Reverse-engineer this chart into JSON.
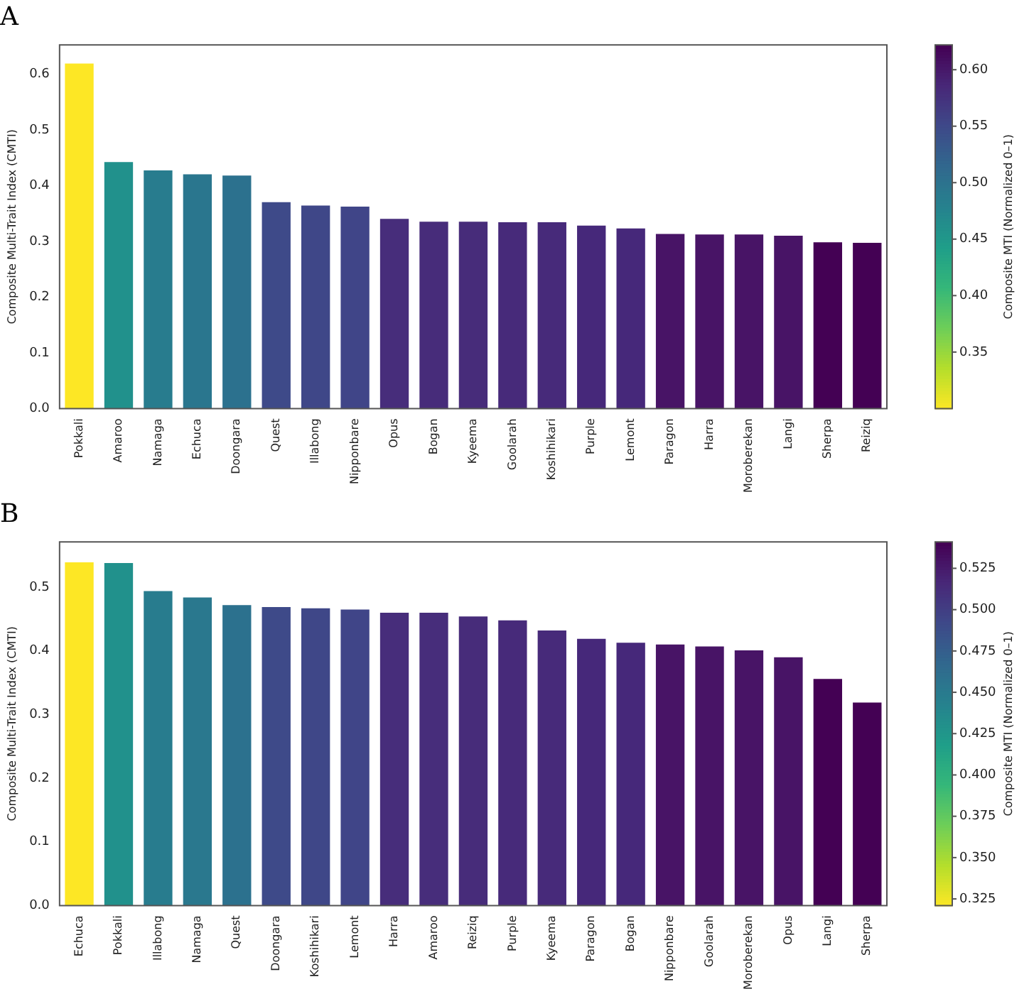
{
  "chart_data": [
    {
      "type": "bar",
      "title": "A",
      "ylabel": "Composite Multi-Trait Index (CMTI)",
      "clabel": "Composite MTI (Normalized 0–1)",
      "categories": [
        "Pokkali",
        "Amaroo",
        "Namaga",
        "Echuca",
        "Doongara",
        "Quest",
        "Illabong",
        "Nipponbare",
        "Opus",
        "Bogan",
        "Kyeema",
        "Goolarah",
        "Koshihikari",
        "Purple",
        "Lemont",
        "Paragon",
        "Harra",
        "Moroberekan",
        "Langi",
        "Sherpa",
        "Reiziq"
      ],
      "values": [
        0.622,
        0.445,
        0.43,
        0.423,
        0.421,
        0.373,
        0.367,
        0.365,
        0.343,
        0.338,
        0.338,
        0.337,
        0.337,
        0.331,
        0.326,
        0.316,
        0.315,
        0.315,
        0.313,
        0.301,
        0.3
      ],
      "colors": [
        "#fde725",
        "#21918c",
        "#287c8e",
        "#2a768e",
        "#2c718e",
        "#3e4a89",
        "#3f4788",
        "#404588",
        "#472d7b",
        "#472c7a",
        "#472c7a",
        "#472a7a",
        "#472a7a",
        "#46287a",
        "#46287a",
        "#481466",
        "#481466",
        "#481466",
        "#481466",
        "#440154",
        "#440154"
      ],
      "ylim": [
        0,
        0.653
      ],
      "yticks": [
        {
          "value": 0,
          "label": "0.0"
        },
        0.1,
        0.2,
        0.3,
        0.4,
        0.5,
        0.6
      ],
      "clim": [
        0.3,
        0.622
      ],
      "cticks": [
        0.35,
        {
          "value": 0.4,
          "label": "0.40"
        },
        0.45,
        {
          "value": 0.5,
          "label": "0.50"
        },
        0.55,
        {
          "value": 0.6,
          "label": "0.60"
        }
      ]
    },
    {
      "type": "bar",
      "title": "B",
      "ylabel": "Composite Multi-Trait Index (CMTI)",
      "clabel": "Composite MTI (Normalized 0–1)",
      "categories": [
        "Echuca",
        "Pokkali",
        "Illabong",
        "Namaga",
        "Quest",
        "Doongara",
        "Koshihikari",
        "Lemont",
        "Harra",
        "Amaroo",
        "Reiziq",
        "Purple",
        "Kyeema",
        "Paragon",
        "Bogan",
        "Nipponbare",
        "Goolarah",
        "Moroberekan",
        "Opus",
        "Langi",
        "Sherpa"
      ],
      "values": [
        0.541,
        0.54,
        0.496,
        0.486,
        0.474,
        0.471,
        0.469,
        0.467,
        0.462,
        0.462,
        0.456,
        0.45,
        0.434,
        0.421,
        0.415,
        0.412,
        0.409,
        0.403,
        0.392,
        0.358,
        0.321
      ],
      "colors": [
        "#fde725",
        "#21918c",
        "#287c8e",
        "#2a788e",
        "#2c718e",
        "#3e4a89",
        "#3f4788",
        "#404588",
        "#472d7b",
        "#472d7b",
        "#472c7a",
        "#472a7a",
        "#472a7a",
        "#46287a",
        "#46287a",
        "#481466",
        "#481466",
        "#481466",
        "#481466",
        "#440154",
        "#440154"
      ],
      "ylim": [
        0,
        0.571
      ],
      "yticks": [
        {
          "value": 0,
          "label": "0.0"
        },
        0.1,
        0.2,
        0.3,
        0.4,
        0.5
      ],
      "clim": [
        0.321,
        0.541
      ],
      "cticks": [
        0.325,
        {
          "value": 0.35,
          "label": "0.350"
        },
        0.375,
        {
          "value": 0.4,
          "label": "0.400"
        },
        0.425,
        {
          "value": 0.45,
          "label": "0.450"
        },
        0.475,
        {
          "value": 0.5,
          "label": "0.500"
        },
        0.525
      ]
    }
  ]
}
